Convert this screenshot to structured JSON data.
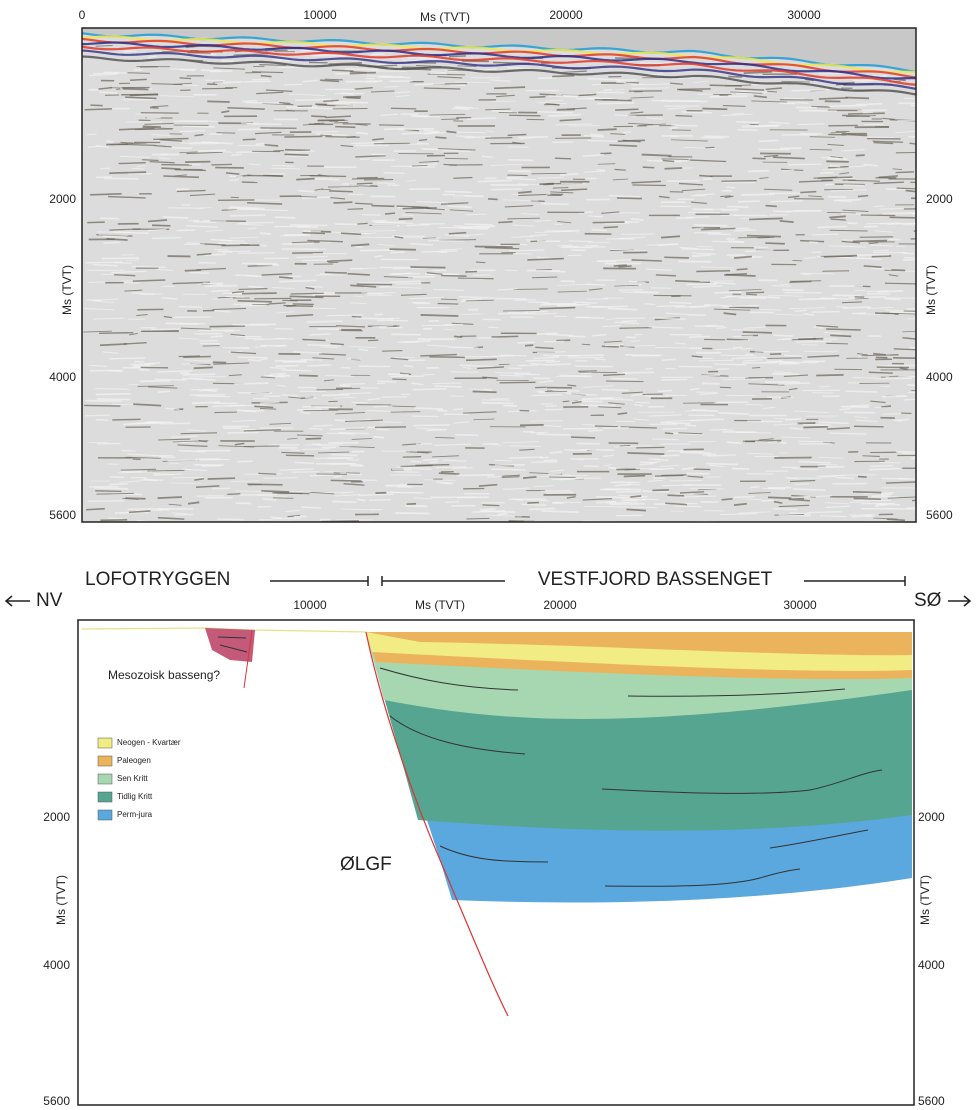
{
  "seismic_section": {
    "x_axis_label": "Ms (TVT)",
    "x_ticks": [
      "0",
      "10000",
      "20000",
      "30000"
    ],
    "y_axis_label_left": "Ms (TVT)",
    "y_axis_label_right": "Ms (TVT)",
    "y_ticks_left": [
      "2000",
      "4000",
      "5600"
    ],
    "y_ticks_right": [
      "2000",
      "4000",
      "5600"
    ]
  },
  "interpretation": {
    "regions": [
      "LOFOTRYGGEN",
      "VESTFJORD BASSENGET"
    ],
    "directions": [
      "NV",
      "SØ"
    ],
    "x_axis_label": "Ms (TVT)",
    "x_ticks": [
      "10000",
      "20000",
      "30000"
    ],
    "y_axis_label_left": "Ms (TVT)",
    "y_axis_label_right": "Ms (TVT)",
    "y_ticks_left": [
      "2000",
      "4000",
      "5600"
    ],
    "y_ticks_right": [
      "2000",
      "4000",
      "5600"
    ],
    "annotations": [
      "Mesozoisk basseng?",
      "ØLGF"
    ],
    "legend": [
      {
        "label": "Neogen - Kvartær",
        "color": "#f2ec84"
      },
      {
        "label": "Paleogen",
        "color": "#ebb45c"
      },
      {
        "label": "Sen Kritt",
        "color": "#a6d7b0"
      },
      {
        "label": "Tidlig Kritt",
        "color": "#55a591"
      },
      {
        "label": "Perm-jura",
        "color": "#5aa8dd"
      }
    ]
  }
}
